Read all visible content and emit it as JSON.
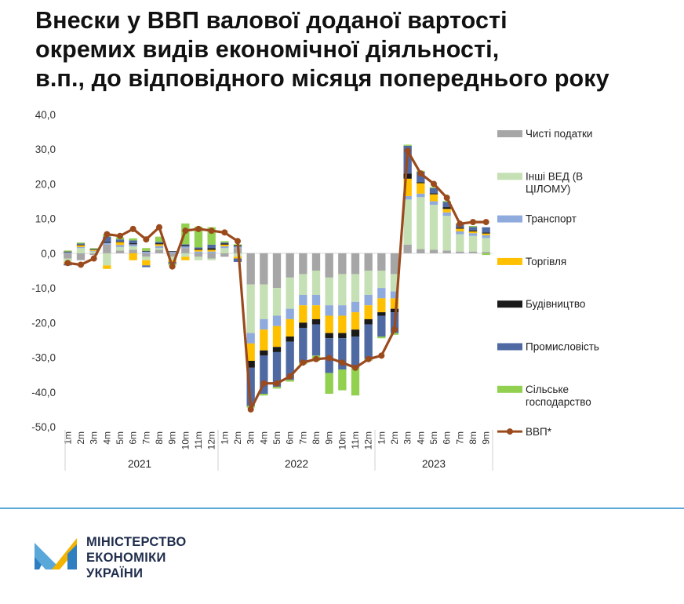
{
  "title_lines": [
    "Внески у ВВП валової доданої вартості",
    "окремих видів економічної діяльності,",
    "в.п., до відповідного місяця попереднього року"
  ],
  "logo": {
    "lines": [
      "МІНІСТЕРСТВО",
      "ЕКОНОМІКИ",
      "УКРАЇНИ"
    ],
    "icon": "ministry-logo-m-icon"
  },
  "colors": {
    "divider": "#5aa7d9",
    "gdp_line": "#9a4a1c"
  },
  "chart_data": {
    "type": "bar",
    "stacked": true,
    "ylim": [
      -50,
      40
    ],
    "yticks": [
      "40,0",
      "30,0",
      "20,0",
      "10,0",
      "0,0",
      "-10,0",
      "-20,0",
      "-30,0",
      "-40,0",
      "-50,0"
    ],
    "categories": [
      "1m",
      "2m",
      "3m",
      "4m",
      "5m",
      "6m",
      "7m",
      "8m",
      "9m",
      "10m",
      "11m",
      "12m",
      "1m",
      "2m",
      "3m",
      "4m",
      "5m",
      "6m",
      "7m",
      "8m",
      "9m",
      "10m",
      "11m",
      "12m",
      "1m",
      "2m",
      "3m",
      "4m",
      "5m",
      "6m",
      "7m",
      "8m",
      "9m"
    ],
    "year_groups": [
      {
        "label": "2021",
        "count": 12
      },
      {
        "label": "2022",
        "count": 12
      },
      {
        "label": "2023",
        "count": 9
      }
    ],
    "legend_position": "right",
    "grid": false,
    "series": [
      {
        "name": "Чисті податки",
        "color": "#a6a6a6",
        "values": [
          -1.5,
          -2,
          -0.5,
          2.5,
          0.8,
          1,
          -1,
          1,
          -1,
          1.5,
          -1,
          -1.5,
          -1,
          1.5,
          -9,
          -9,
          -10,
          -7,
          -6,
          -5,
          -7,
          -6,
          -6,
          -5,
          -5,
          -6,
          2.5,
          1.2,
          1,
          0.8,
          0.5,
          0.5,
          0.4
        ]
      },
      {
        "name": "Інші ВЕД (В ЦІЛОМУ)",
        "color": "#c5e0b4",
        "values": [
          -1,
          1.5,
          0.5,
          -3.5,
          1,
          1,
          -1,
          0.5,
          -1,
          -1,
          -1,
          -0.5,
          1.5,
          -1,
          -14,
          -10,
          -8,
          -9,
          -6,
          -7,
          -8,
          -9,
          -8,
          -7,
          -5,
          -5,
          13,
          15,
          13,
          10,
          5,
          4.5,
          4
        ]
      },
      {
        "name": "Транспорт",
        "color": "#8faadc",
        "values": [
          0.3,
          0.3,
          0.2,
          0.5,
          0.6,
          0.6,
          0.5,
          0.6,
          0.4,
          0.5,
          0.5,
          0.5,
          0.5,
          0.5,
          -3,
          -3,
          -3,
          -3,
          -3,
          -3,
          -3,
          -3,
          -3,
          -3,
          -3,
          -2,
          1,
          1,
          1,
          1,
          0.8,
          0.8,
          0.8
        ]
      },
      {
        "name": "Торгівля",
        "color": "#ffc000",
        "values": [
          -0.5,
          0.5,
          0.3,
          -1,
          0.8,
          -2,
          -1.5,
          0.5,
          -0.5,
          -1,
          0.5,
          0.5,
          0.5,
          -0.5,
          -5,
          -6,
          -6,
          -5,
          -5,
          -4,
          -5,
          -5,
          -5,
          -4,
          -4,
          -3,
          5,
          3,
          2,
          1,
          0.8,
          0.5,
          0.5
        ]
      },
      {
        "name": "Будівництво",
        "color": "#1a1a1a",
        "values": [
          0.2,
          0.2,
          0.1,
          0.3,
          0.2,
          0.3,
          0.2,
          0.3,
          0.2,
          0.3,
          0.3,
          0.5,
          0.3,
          0.3,
          -2,
          -1.5,
          -1.5,
          -1.5,
          -1.5,
          -1.5,
          -1.5,
          -1.5,
          -2,
          -1.5,
          -1,
          -1,
          1.5,
          0.3,
          0.3,
          0.5,
          0.3,
          0.3,
          0.3
        ]
      },
      {
        "name": "Промисловість",
        "color": "#4f6aa3",
        "values": [
          -0.5,
          0.3,
          0.2,
          1.5,
          0.6,
          0.8,
          -0.5,
          0.4,
          -0.5,
          0.3,
          0.4,
          1,
          0.3,
          -1,
          -11,
          -11,
          -10,
          -11,
          -10,
          -9,
          -10,
          -9,
          -9,
          -10,
          -6,
          -6,
          8,
          3,
          1.5,
          1.5,
          1,
          1,
          1.5
        ]
      },
      {
        "name": "Сільське господарство",
        "color": "#92d050",
        "values": [
          0.3,
          0.3,
          0.2,
          0.6,
          0.6,
          0.6,
          0.8,
          1.5,
          -0.5,
          6,
          6,
          5,
          0.4,
          0.3,
          -0.5,
          -0.5,
          -0.5,
          -0.5,
          -0.5,
          -1.5,
          -6,
          -6,
          -8,
          -0.5,
          -0.5,
          -0.5,
          0.3,
          0.3,
          0.3,
          0.3,
          0.3,
          0.3,
          -0.5
        ]
      }
    ],
    "line": {
      "name": "ВВП*",
      "color": "#9a4a1c",
      "values": [
        -2.8,
        -3.3,
        -1.5,
        5.5,
        5,
        7,
        4,
        7.5,
        -3.8,
        6.5,
        7,
        6.5,
        6,
        3.5,
        -45,
        -37.5,
        -37.5,
        -35.5,
        -31.5,
        -30.5,
        -30.2,
        -31.5,
        -33,
        -30.5,
        -29.5,
        -22,
        29.5,
        23,
        20,
        16,
        8.5,
        9,
        9
      ]
    }
  }
}
